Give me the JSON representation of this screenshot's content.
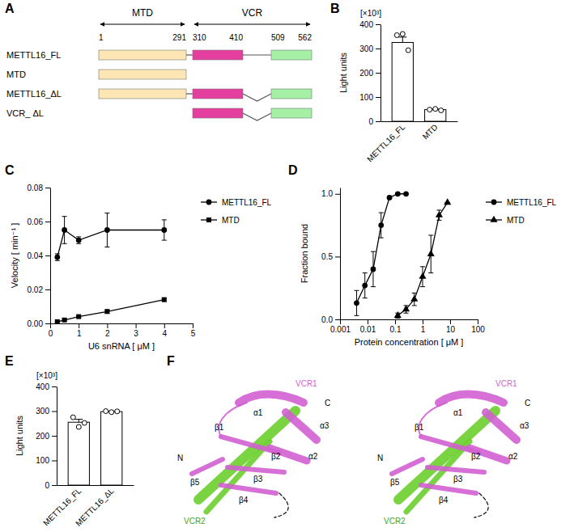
{
  "panel_labels": [
    "A",
    "B",
    "C",
    "D",
    "E",
    "F"
  ],
  "domain_diagram": {
    "regions": [
      {
        "label": "MTD"
      },
      {
        "label": "VCR"
      }
    ],
    "positions": [
      1,
      291,
      310,
      410,
      509,
      562
    ],
    "constructs": [
      "METTL16_FL",
      "MTD",
      "METTL16_ΔL",
      "VCR_ ΔL"
    ]
  },
  "structure": {
    "labels": [
      "VCR1",
      "C",
      "α1",
      "α3",
      "α2",
      "β1",
      "β2",
      "β3",
      "β4",
      "β5",
      "N",
      "VCR2"
    ]
  },
  "chart_data": [
    {
      "type": "bar",
      "ylabel": "Light units",
      "annotations": [
        "[×10³]"
      ],
      "categories": [
        "METTL16_FL",
        "MTD"
      ],
      "values": [
        325,
        48
      ],
      "errors": [
        22,
        2
      ],
      "points": [
        [
          355,
          360,
          293
        ],
        [
          48,
          51,
          45
        ]
      ],
      "color": "#ffffff",
      "ylim": [
        0,
        400
      ],
      "yticks": [
        0,
        100,
        200,
        300,
        400
      ]
    },
    {
      "type": "line",
      "xlabel": "U6 snRNA [ μM ]",
      "ylabel": "Velocity [ min⁻¹ ]",
      "series": [
        {
          "name": "METTL16_FL",
          "color": "#000000",
          "marker": "circle",
          "line_style": "solid",
          "x": [
            0.25,
            0.5,
            1,
            2,
            4
          ],
          "values": [
            0.039,
            0.055,
            0.049,
            0.055,
            0.055
          ],
          "errors": [
            0.002,
            0.008,
            0.002,
            0.01,
            0.006
          ]
        },
        {
          "name": "MTD",
          "color": "#000000",
          "marker": "square",
          "line_style": "solid",
          "x": [
            0.25,
            0.5,
            1,
            2,
            4
          ],
          "values": [
            0.001,
            0.002,
            0.004,
            0.007,
            0.014
          ],
          "errors": [
            0.0003,
            0.0005,
            0.0005,
            0.001,
            0.001
          ]
        }
      ],
      "xlim": [
        0,
        5
      ],
      "xticks": [
        0,
        1,
        2,
        3,
        4,
        5
      ],
      "ylim": [
        0,
        0.08
      ],
      "yticks": [
        {
          "value": 0,
          "label": "0.00"
        },
        {
          "value": 0.02,
          "label": "0.02"
        },
        {
          "value": 0.04,
          "label": "0.04"
        },
        {
          "value": 0.06,
          "label": "0.06"
        },
        {
          "value": 0.08,
          "label": "0.08"
        }
      ],
      "legend": "right"
    },
    {
      "type": "scatter",
      "xlabel": "Protein concentration [ μM ]",
      "ylabel": "Fraction bound",
      "log": "x",
      "series": [
        {
          "name": "METTL16_FL",
          "color": "#000000",
          "marker": "circle",
          "line_style": "solid",
          "x": [
            0.004,
            0.008,
            0.016,
            0.031,
            0.0625,
            0.125,
            0.25
          ],
          "values": [
            0.13,
            0.27,
            0.4,
            0.75,
            0.97,
            1.0,
            1.0
          ],
          "errors": [
            0.1,
            0.1,
            0.14,
            0.1,
            0,
            0,
            0
          ]
        },
        {
          "name": "MTD",
          "color": "#000000",
          "marker": "triangle",
          "line_style": "solid",
          "x": [
            0.125,
            0.25,
            0.5,
            1,
            2,
            4,
            8
          ],
          "values": [
            0.03,
            0.08,
            0.16,
            0.34,
            0.52,
            0.83,
            0.93
          ],
          "errors": [
            0.02,
            0.03,
            0.05,
            0.08,
            0.15,
            0.04,
            0
          ]
        }
      ],
      "xlim": [
        0.001,
        100
      ],
      "xticks": [
        0.001,
        0.01,
        0.1,
        1,
        10,
        100
      ],
      "ylim": [
        0,
        1.05
      ],
      "yticks": [
        {
          "value": 0,
          "label": "0.0"
        },
        {
          "value": 0.5,
          "label": "0.5"
        },
        {
          "value": 1,
          "label": "1.0"
        }
      ],
      "legend": "right"
    },
    {
      "type": "bar",
      "ylabel": "Light units",
      "annotations": [
        "[×10³]"
      ],
      "categories": [
        "METTL16_FL",
        "METTL16_ΔL"
      ],
      "values": [
        255,
        298
      ],
      "errors": [
        12,
        1
      ],
      "points": [
        [
          275,
          236,
          252
        ],
        [
          300,
          296,
          299
        ]
      ],
      "color": "#ffffff",
      "ylim": [
        0,
        400
      ],
      "yticks": [
        0,
        100,
        200,
        300,
        400
      ]
    }
  ]
}
